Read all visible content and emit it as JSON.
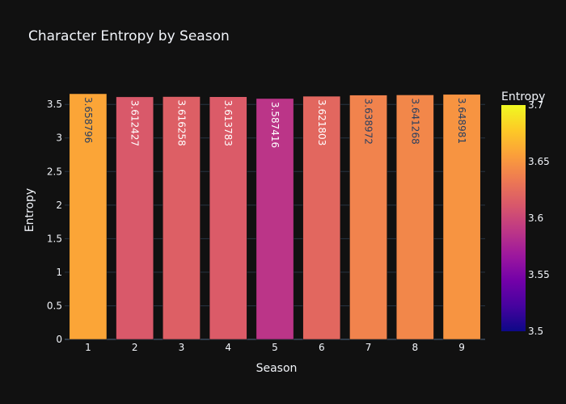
{
  "chart_data": {
    "type": "bar",
    "title": "Character Entropy by Season",
    "xlabel": "Season",
    "ylabel": "Entropy",
    "categories": [
      "1",
      "2",
      "3",
      "4",
      "5",
      "6",
      "7",
      "8",
      "9"
    ],
    "values": [
      3.658796,
      3.612427,
      3.616258,
      3.613783,
      3.587416,
      3.621803,
      3.638972,
      3.641268,
      3.648981
    ],
    "value_labels": [
      "3.658796",
      "3.612427",
      "3.616258",
      "3.613783",
      "3.587416",
      "3.621803",
      "3.638972",
      "3.641268",
      "3.648981"
    ],
    "ylim": [
      0,
      3.658796
    ],
    "yticks": [
      0,
      0.5,
      1,
      1.5,
      2,
      2.5,
      3,
      3.5
    ],
    "ytick_labels": [
      "0",
      "0.5",
      "1",
      "1.5",
      "2",
      "2.5",
      "3",
      "3.5"
    ],
    "grid": true,
    "colorscale": "plasma",
    "colorbar": {
      "title": "Entropy",
      "range": [
        3.5,
        3.7
      ],
      "ticks": [
        3.5,
        3.55,
        3.6,
        3.65,
        3.7
      ],
      "tick_labels": [
        "3.5",
        "3.55",
        "3.6",
        "3.65",
        "3.7"
      ]
    },
    "colors": {
      "background": "#111111",
      "grid": "#283442",
      "text": "#f2f5fa"
    }
  }
}
